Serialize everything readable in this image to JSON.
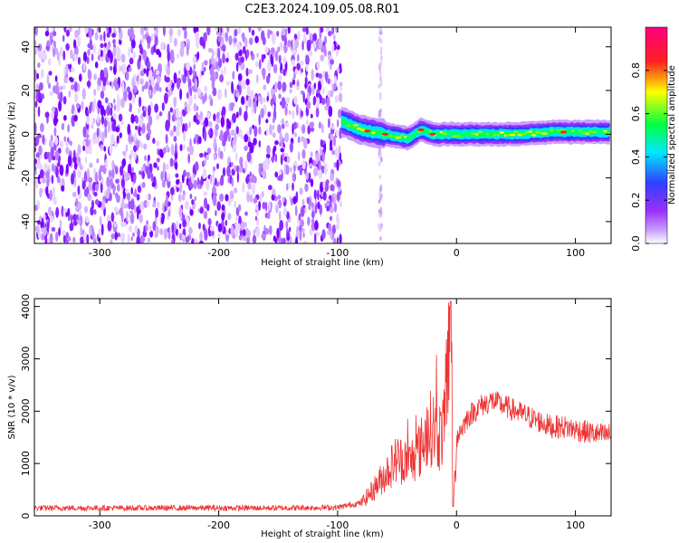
{
  "title": "C2E3.2024.109.05.08.R01",
  "chart_data": [
    {
      "type": "heatmap",
      "xlabel": "Height of straight line (km)",
      "ylabel": "Frequency (Hz)",
      "xlim": [
        -355,
        130
      ],
      "ylim": [
        -50,
        49
      ],
      "xticks": [
        -300,
        -200,
        -100,
        0,
        100
      ],
      "yticks": [
        -40,
        -20,
        0,
        20,
        40
      ],
      "colorbar": {
        "label": "Normalized spectral amplitude",
        "range": [
          0,
          1
        ],
        "ticks": [
          "0.0",
          "0.2",
          "0.4",
          "0.6",
          "0.8"
        ],
        "tick_values": [
          0,
          0.2,
          0.4,
          0.6,
          0.8
        ],
        "colors": [
          "#ffffff",
          "#9b30ff",
          "#3050ff",
          "#00e0ff",
          "#00ff40",
          "#ffff00",
          "#ff2020",
          "#ff0080"
        ]
      },
      "noise_region_x": [
        -355,
        -97
      ],
      "spurious_line_x": -64,
      "signal_band": {
        "x": [
          -97,
          -80,
          -60,
          -40,
          -30,
          -20,
          0,
          50,
          80,
          95,
          130
        ],
        "center_hz": [
          6,
          2,
          0,
          -2,
          2,
          0,
          0,
          0,
          1,
          1,
          1
        ],
        "peak_x": [
          -75,
          -60,
          -30,
          -20,
          90
        ]
      }
    },
    {
      "type": "line",
      "xlabel": "Height of straight line (km)",
      "ylabel": "SNR (10 * v/v)",
      "xlim": [
        -355,
        130
      ],
      "ylim": [
        0,
        4150
      ],
      "xticks": [
        -300,
        -200,
        -100,
        0,
        100
      ],
      "yticks": [
        0,
        1000,
        2000,
        3000,
        4000
      ],
      "color": "#ee3333",
      "series": [
        {
          "x": [
            -355,
            -300,
            -250,
            -200,
            -150,
            -100,
            -80,
            -70,
            -60,
            -50,
            -40,
            -30,
            -25,
            -20,
            -15,
            -10,
            -5,
            -2,
            0,
            10,
            20,
            30,
            40,
            50,
            60,
            70,
            80,
            90,
            100,
            110,
            120,
            130
          ],
          "y": [
            150,
            150,
            150,
            150,
            150,
            160,
            250,
            500,
            800,
            1100,
            1000,
            1300,
            1600,
            1700,
            1500,
            1700,
            4100,
            400,
            1500,
            1900,
            2100,
            2200,
            2100,
            2000,
            1900,
            1800,
            1700,
            1700,
            1650,
            1600,
            1550,
            1550
          ]
        }
      ]
    }
  ]
}
